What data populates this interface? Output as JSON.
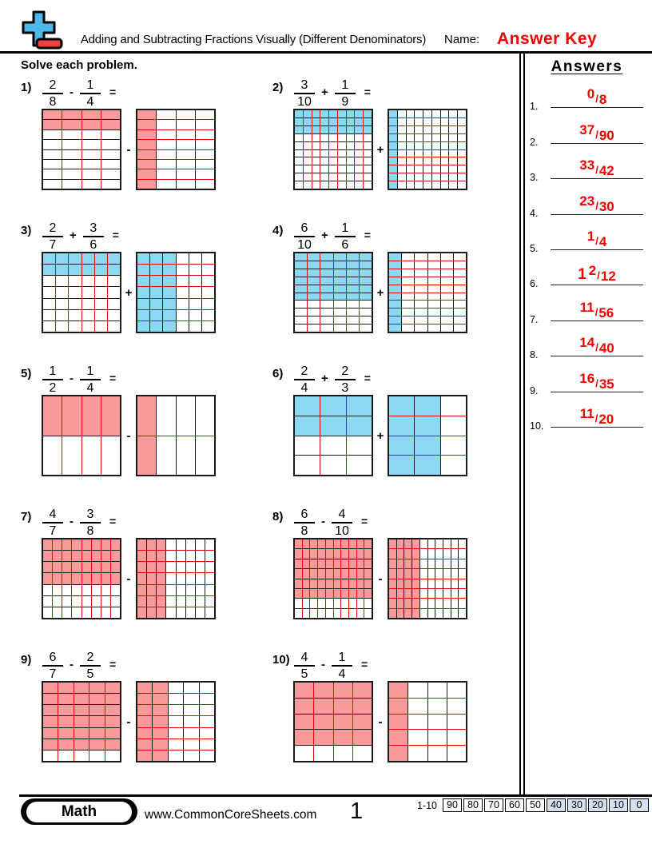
{
  "header": {
    "title": "Adding and Subtracting Fractions Visually (Different Denominators)",
    "name_label": "Name:",
    "name_value": "Answer Key",
    "logo_icon": "plus-minus-icon"
  },
  "main": {
    "instruction": "Solve each problem."
  },
  "colors": {
    "add_fill": "#8ed9f2",
    "sub_fill": "#fa9a9a",
    "grid_line_red": "#e60000",
    "grid_line_black": "#1a1a1a",
    "answer_red": "#f10000",
    "score_highlight": "#d7e0f2",
    "logo_blue": "#4cb9e9",
    "logo_red": "#ef4141"
  },
  "problems": [
    {
      "label": "1)",
      "f1": {
        "n": "2",
        "d": "8"
      },
      "op": "-",
      "f2": {
        "n": "1",
        "d": "4"
      },
      "eq": "=",
      "grid1": {
        "rows": 8,
        "cols": 4,
        "shaded": 2
      },
      "grid2": {
        "cols": 4,
        "rows": 8,
        "shaded": 1
      }
    },
    {
      "label": "2)",
      "f1": {
        "n": "3",
        "d": "10"
      },
      "op": "+",
      "f2": {
        "n": "1",
        "d": "9"
      },
      "eq": "=",
      "grid1": {
        "rows": 10,
        "cols": 9,
        "shaded": 3
      },
      "grid2": {
        "cols": 9,
        "rows": 10,
        "shaded": 1
      }
    },
    {
      "label": "3)",
      "f1": {
        "n": "2",
        "d": "7"
      },
      "op": "+",
      "f2": {
        "n": "3",
        "d": "6"
      },
      "eq": "=",
      "grid1": {
        "rows": 7,
        "cols": 6,
        "shaded": 2
      },
      "grid2": {
        "cols": 6,
        "rows": 7,
        "shaded": 3
      }
    },
    {
      "label": "4)",
      "f1": {
        "n": "6",
        "d": "10"
      },
      "op": "+",
      "f2": {
        "n": "1",
        "d": "6"
      },
      "eq": "=",
      "grid1": {
        "rows": 10,
        "cols": 6,
        "shaded": 6
      },
      "grid2": {
        "cols": 6,
        "rows": 10,
        "shaded": 1
      }
    },
    {
      "label": "5)",
      "f1": {
        "n": "1",
        "d": "2"
      },
      "op": "-",
      "f2": {
        "n": "1",
        "d": "4"
      },
      "eq": "=",
      "grid1": {
        "rows": 2,
        "cols": 4,
        "shaded": 1
      },
      "grid2": {
        "cols": 4,
        "rows": 2,
        "shaded": 1
      }
    },
    {
      "label": "6)",
      "f1": {
        "n": "2",
        "d": "4"
      },
      "op": "+",
      "f2": {
        "n": "2",
        "d": "3"
      },
      "eq": "=",
      "grid1": {
        "rows": 4,
        "cols": 3,
        "shaded": 2
      },
      "grid2": {
        "cols": 3,
        "rows": 4,
        "shaded": 2
      }
    },
    {
      "label": "7)",
      "f1": {
        "n": "4",
        "d": "7"
      },
      "op": "-",
      "f2": {
        "n": "3",
        "d": "8"
      },
      "eq": "=",
      "grid1": {
        "rows": 7,
        "cols": 8,
        "shaded": 4
      },
      "grid2": {
        "cols": 8,
        "rows": 7,
        "shaded": 3
      }
    },
    {
      "label": "8)",
      "f1": {
        "n": "6",
        "d": "8"
      },
      "op": "-",
      "f2": {
        "n": "4",
        "d": "10"
      },
      "eq": "=",
      "grid1": {
        "rows": 8,
        "cols": 10,
        "shaded": 6
      },
      "grid2": {
        "cols": 10,
        "rows": 8,
        "shaded": 4
      }
    },
    {
      "label": "9)",
      "f1": {
        "n": "6",
        "d": "7"
      },
      "op": "-",
      "f2": {
        "n": "2",
        "d": "5"
      },
      "eq": "=",
      "grid1": {
        "rows": 7,
        "cols": 5,
        "shaded": 6
      },
      "grid2": {
        "cols": 5,
        "rows": 7,
        "shaded": 2
      }
    },
    {
      "label": "10)",
      "f1": {
        "n": "4",
        "d": "5"
      },
      "op": "-",
      "f2": {
        "n": "1",
        "d": "4"
      },
      "eq": "=",
      "grid1": {
        "rows": 5,
        "cols": 4,
        "shaded": 4
      },
      "grid2": {
        "cols": 4,
        "rows": 5,
        "shaded": 1
      }
    }
  ],
  "answers": {
    "title": "Answers",
    "slash": "/",
    "items": [
      {
        "label": "1.",
        "whole": "",
        "num": "0",
        "den": "8"
      },
      {
        "label": "2.",
        "whole": "",
        "num": "37",
        "den": "90"
      },
      {
        "label": "3.",
        "whole": "",
        "num": "33",
        "den": "42"
      },
      {
        "label": "4.",
        "whole": "",
        "num": "23",
        "den": "30"
      },
      {
        "label": "5.",
        "whole": "",
        "num": "1",
        "den": "4"
      },
      {
        "label": "6.",
        "whole": "1",
        "num": "2",
        "den": "12"
      },
      {
        "label": "7.",
        "whole": "",
        "num": "11",
        "den": "56"
      },
      {
        "label": "8.",
        "whole": "",
        "num": "14",
        "den": "40"
      },
      {
        "label": "9.",
        "whole": "",
        "num": "16",
        "den": "35"
      },
      {
        "label": "10.",
        "whole": "",
        "num": "11",
        "den": "20"
      }
    ]
  },
  "footer": {
    "badge": "Math",
    "site": "www.CommonCoreSheets.com",
    "page": "1",
    "range_label": "1-10",
    "scores": [
      "90",
      "80",
      "70",
      "60",
      "50",
      "40",
      "30",
      "20",
      "10",
      "0"
    ],
    "highlighted_count": 5
  }
}
